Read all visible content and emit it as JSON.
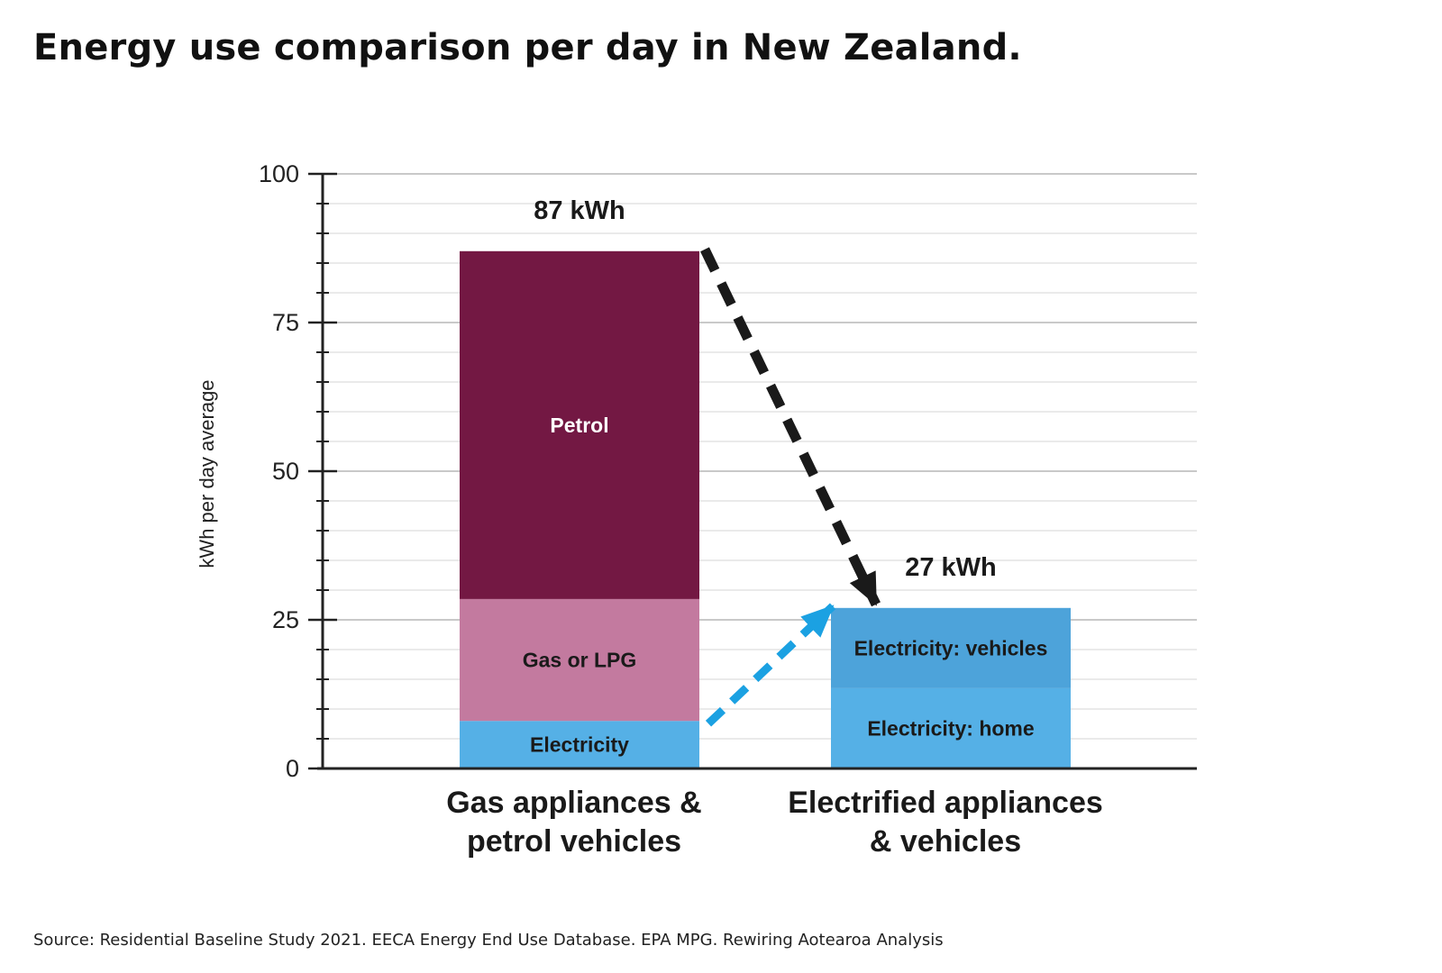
{
  "title": "Energy use comparison per day in New Zealand.",
  "source": "Source: Residential Baseline Study 2021. EECA Energy End Use Database. EPA MPG. Rewiring Aotearoa Analysis",
  "chart_data": {
    "type": "bar",
    "stacked": true,
    "ylabel": "kWh per day average",
    "ylim": [
      0,
      100
    ],
    "yticks": [
      "0",
      "25",
      "50",
      "75",
      "100"
    ],
    "grid": true,
    "categories": [
      "Gas appliances & petrol vehicles",
      "Electrified appliances & vehicles"
    ],
    "category_lines": [
      [
        "Gas appliances &",
        "petrol vehicles"
      ],
      [
        "Electrified appliances",
        "& vehicles"
      ]
    ],
    "totals": [
      87,
      27
    ],
    "total_labels": [
      "87 kWh",
      "27 kWh"
    ],
    "series": [
      {
        "name": "Electricity",
        "values": [
          8,
          0
        ],
        "color": "#55B0E6"
      },
      {
        "name": "Gas or LPG",
        "values": [
          20.5,
          0
        ],
        "color": "#C37A9F"
      },
      {
        "name": "Petrol",
        "values": [
          58.5,
          0
        ],
        "color": "#731843"
      },
      {
        "name": "Electricity: home",
        "values": [
          0,
          13.5
        ],
        "color": "#55B0E6"
      },
      {
        "name": "Electricity: vehicles",
        "values": [
          0,
          13.5
        ],
        "color": "#4DA3DA"
      }
    ],
    "segment_labels": [
      {
        "series": 0,
        "category": 0,
        "text": "Electricity",
        "text_color": "#1a1a1a"
      },
      {
        "series": 1,
        "category": 0,
        "text": "Gas or LPG",
        "text_color": "#1a1a1a"
      },
      {
        "series": 2,
        "category": 0,
        "text": "Petrol",
        "text_color": "#ffffff"
      },
      {
        "series": 3,
        "category": 1,
        "text": "Electricity: home",
        "text_color": "#1a1a1a"
      },
      {
        "series": 4,
        "category": 1,
        "text": "Electricity: vehicles",
        "text_color": "#1a1a1a"
      }
    ],
    "annotations": [
      {
        "type": "dashed-arrow",
        "color": "#1a1a1a",
        "from": {
          "category": 0,
          "y": 87
        },
        "to": {
          "category": 1,
          "y": 27
        }
      },
      {
        "type": "dashed-arrow",
        "color": "#1BA1E2",
        "from": {
          "category": 0,
          "y": 8
        },
        "to": {
          "category": 1,
          "y": 27
        }
      }
    ]
  }
}
